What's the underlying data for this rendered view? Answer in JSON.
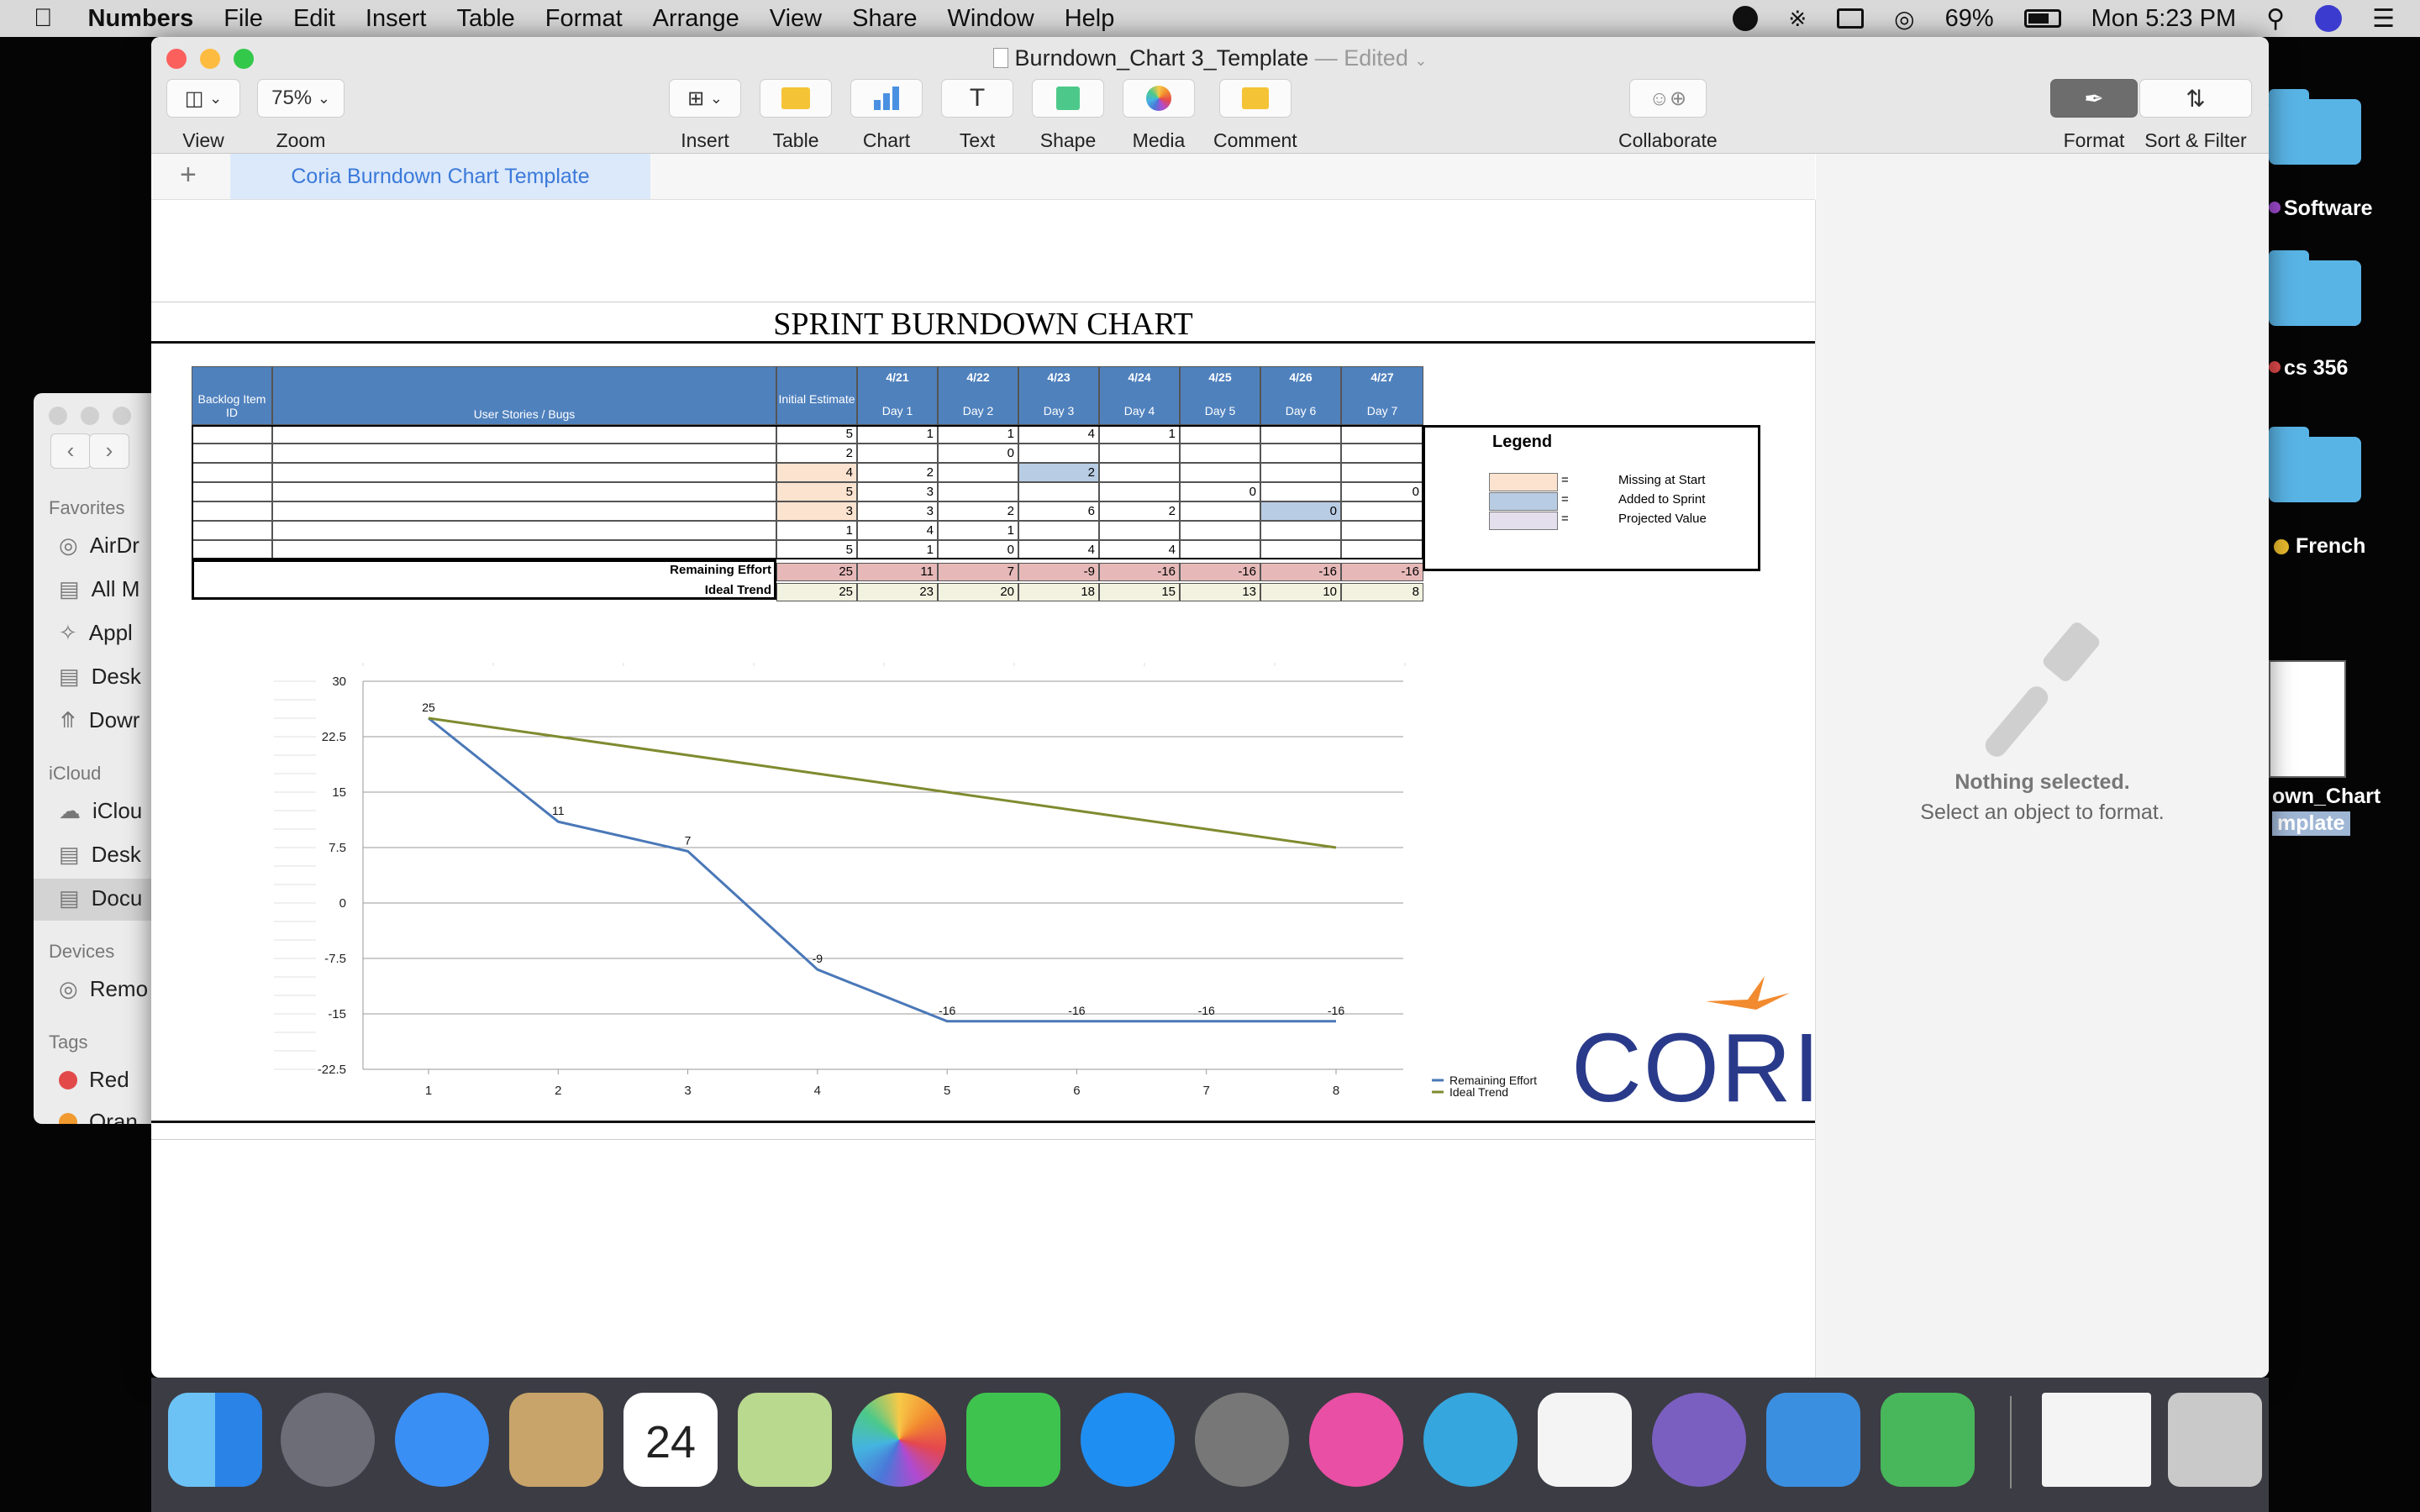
{
  "menubar": {
    "app": "Numbers",
    "items": [
      "File",
      "Edit",
      "Insert",
      "Table",
      "Format",
      "Arrange",
      "View",
      "Share",
      "Window",
      "Help"
    ],
    "battery": "69%",
    "clock": "Mon 5:23 PM"
  },
  "desktop": {
    "labels": [
      "Software",
      "cs 356",
      "French"
    ],
    "file_label_1": "own_Chart",
    "file_label_2": "mplate"
  },
  "finder": {
    "favorites": "Favorites",
    "fav_items": [
      "AirDr",
      "All M",
      "Appl",
      "Desk",
      "Dowr"
    ],
    "icloud": "iCloud",
    "icloud_items": [
      "iClou",
      "Desk",
      "Docu"
    ],
    "devices": "Devices",
    "device_items": [
      "Remo"
    ],
    "tags": "Tags",
    "tag_items": [
      "Red",
      "Oran"
    ]
  },
  "window": {
    "title": "Burndown_Chart 3_Template",
    "edited": "— Edited"
  },
  "toolbar": {
    "view": "View",
    "zoom_value": "75%",
    "zoom": "Zoom",
    "insert": "Insert",
    "table": "Table",
    "chart": "Chart",
    "text": "Text",
    "shape": "Shape",
    "media": "Media",
    "comment": "Comment",
    "collaborate": "Collaborate",
    "format": "Format",
    "sort_filter": "Sort & Filter"
  },
  "tabs": {
    "add": "+",
    "sheet": "Coria Burndown Chart Template"
  },
  "doc": {
    "title": "SPRINT BURNDOWN CHART",
    "headers": {
      "backlog": "Backlog Item ID",
      "stories": "User Stories / Bugs",
      "initial": "Initial Estimate",
      "dates": [
        "4/21",
        "4/22",
        "4/23",
        "4/24",
        "4/25",
        "4/26",
        "4/27"
      ],
      "days": [
        "Day 1",
        "Day 2",
        "Day 3",
        "Day 4",
        "Day 5",
        "Day 6",
        "Day 7"
      ]
    },
    "rows": [
      {
        "initial": "5",
        "days": [
          "1",
          "1",
          "4",
          "1",
          "",
          "",
          ""
        ]
      },
      {
        "initial": "2",
        "days": [
          "",
          "0",
          "",
          "",
          "",
          "",
          ""
        ]
      },
      {
        "initial": "4",
        "days": [
          "2",
          "",
          "2",
          "",
          "",
          "",
          ""
        ]
      },
      {
        "initial": "5",
        "days": [
          "3",
          "",
          "",
          "",
          "0",
          "",
          "0"
        ]
      },
      {
        "initial": "3",
        "days": [
          "3",
          "2",
          "6",
          "2",
          "",
          "0",
          ""
        ]
      },
      {
        "initial": "1",
        "days": [
          "4",
          "1",
          "",
          "",
          "",
          "",
          ""
        ]
      },
      {
        "initial": "5",
        "days": [
          "1",
          "0",
          "4",
          "4",
          "",
          "",
          ""
        ]
      }
    ],
    "remaining_label": "Remaining Effort",
    "remaining": [
      "25",
      "11",
      "7",
      "-9",
      "-16",
      "-16",
      "-16",
      "-16"
    ],
    "ideal_label": "Ideal Trend",
    "ideal": [
      "25",
      "23",
      "20",
      "18",
      "15",
      "13",
      "10",
      "8"
    ],
    "legend": {
      "title": "Legend",
      "items": [
        {
          "eq": "=",
          "label": "Missing at Start",
          "color": "#fbe3d0"
        },
        {
          "eq": "=",
          "label": "Added to Sprint",
          "color": "#b8cce4"
        },
        {
          "eq": "=",
          "label": "Projected Value",
          "color": "#e4dfec"
        }
      ]
    },
    "logo": "CORIA"
  },
  "chart_data": {
    "type": "line",
    "x": [
      1,
      2,
      3,
      4,
      5,
      6,
      7,
      8
    ],
    "ylim": [
      -22.5,
      30
    ],
    "yticks": [
      "30",
      "22.5",
      "15",
      "7.5",
      "0",
      "-7.5",
      "-15",
      "-22.5"
    ],
    "xticks": [
      "1",
      "2",
      "3",
      "4",
      "5",
      "6",
      "7",
      "8"
    ],
    "series": [
      {
        "name": "Remaining Effort",
        "color": "#4a78b8",
        "values": [
          25,
          11,
          7,
          -9,
          -16,
          -16,
          -16,
          -16
        ],
        "labels": [
          "25",
          "11",
          "7",
          "-9",
          "-16",
          "-16",
          "-16",
          "-16"
        ]
      },
      {
        "name": "Ideal Trend",
        "color": "#7f8b2f",
        "values": [
          25,
          22.5,
          20,
          17.5,
          15,
          12.5,
          10,
          7.5
        ]
      }
    ],
    "legend_position": "right"
  },
  "inspector": {
    "title": "Nothing selected.",
    "sub": "Select an object to format."
  }
}
